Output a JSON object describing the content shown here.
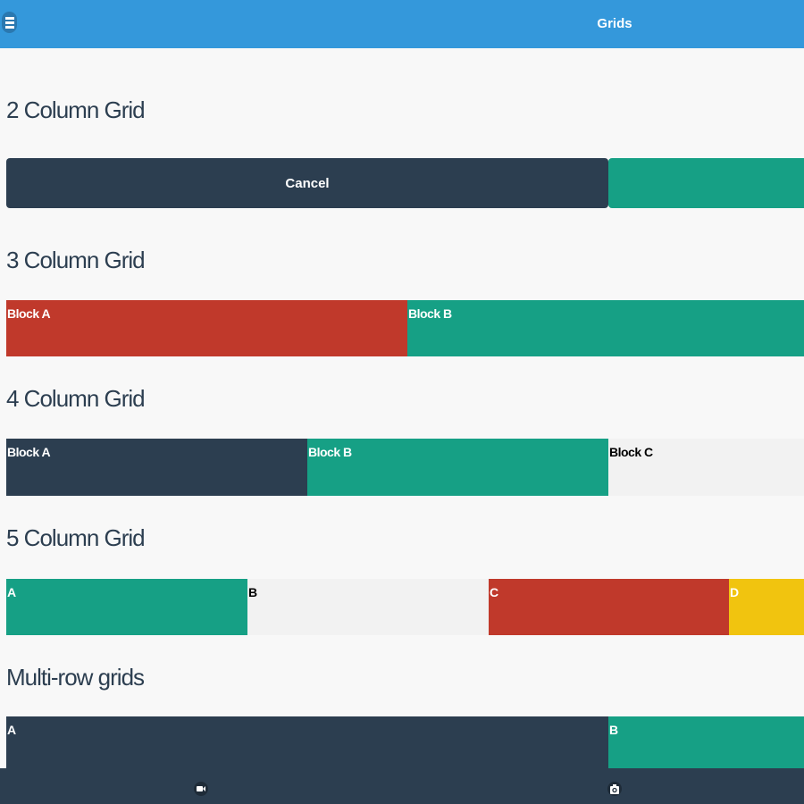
{
  "header": {
    "title": "Grids",
    "menu_icon": "menu-icon"
  },
  "sections": {
    "two": {
      "heading": "2 Column Grid",
      "cancel": "Cancel"
    },
    "three": {
      "heading": "3 Column Grid",
      "a": "Block A",
      "b": "Block B"
    },
    "four": {
      "heading": "4 Column Grid",
      "a": "Block A",
      "b": "Block B",
      "c": "Block C"
    },
    "five": {
      "heading": "5 Column Grid",
      "a": "A",
      "b": "B",
      "c": "C",
      "d": "D"
    },
    "multi": {
      "heading": "Multi-row grids",
      "a": "A",
      "b": "B"
    }
  },
  "footer": {
    "icons": [
      "video-camera-icon",
      "camera-icon"
    ]
  },
  "colors": {
    "header": "#3498db",
    "dark": "#2c3e50",
    "green": "#16a085",
    "red": "#c0392b",
    "yellow": "#f1c40f"
  }
}
